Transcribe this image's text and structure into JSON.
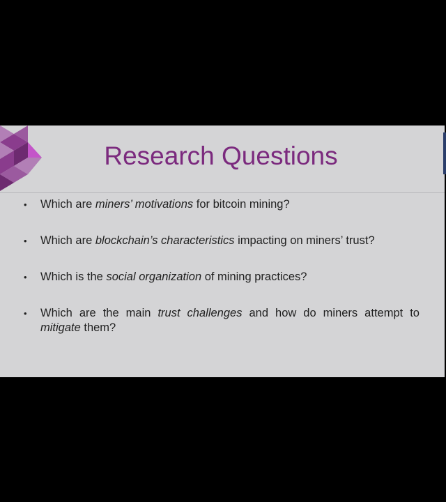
{
  "slide": {
    "title": "Research Questions",
    "colors": {
      "title": "#7b2a7e",
      "background": "#d4d4d6",
      "logo_primary": "#8a3c8d",
      "logo_light": "#b27fb6",
      "logo_accent": "#c455c9"
    },
    "bullets": [
      {
        "pre": "Which are ",
        "em": "miners’ motivations",
        "post": " for bitcoin mining?"
      },
      {
        "pre": "Which are ",
        "em": "blockchain’s characteristics",
        "post": " impacting on miners’ trust?"
      },
      {
        "pre": "Which is the ",
        "em": "social organization",
        "post": " of mining practices?"
      },
      {
        "pre": "Which are the main ",
        "em": "trust challenges",
        "mid": " and how do miners attempt to ",
        "em2": "mitigate",
        "post": " them?"
      }
    ],
    "bullet_glyph": "•",
    "logo_icon": "diamond-mosaic-logo"
  }
}
